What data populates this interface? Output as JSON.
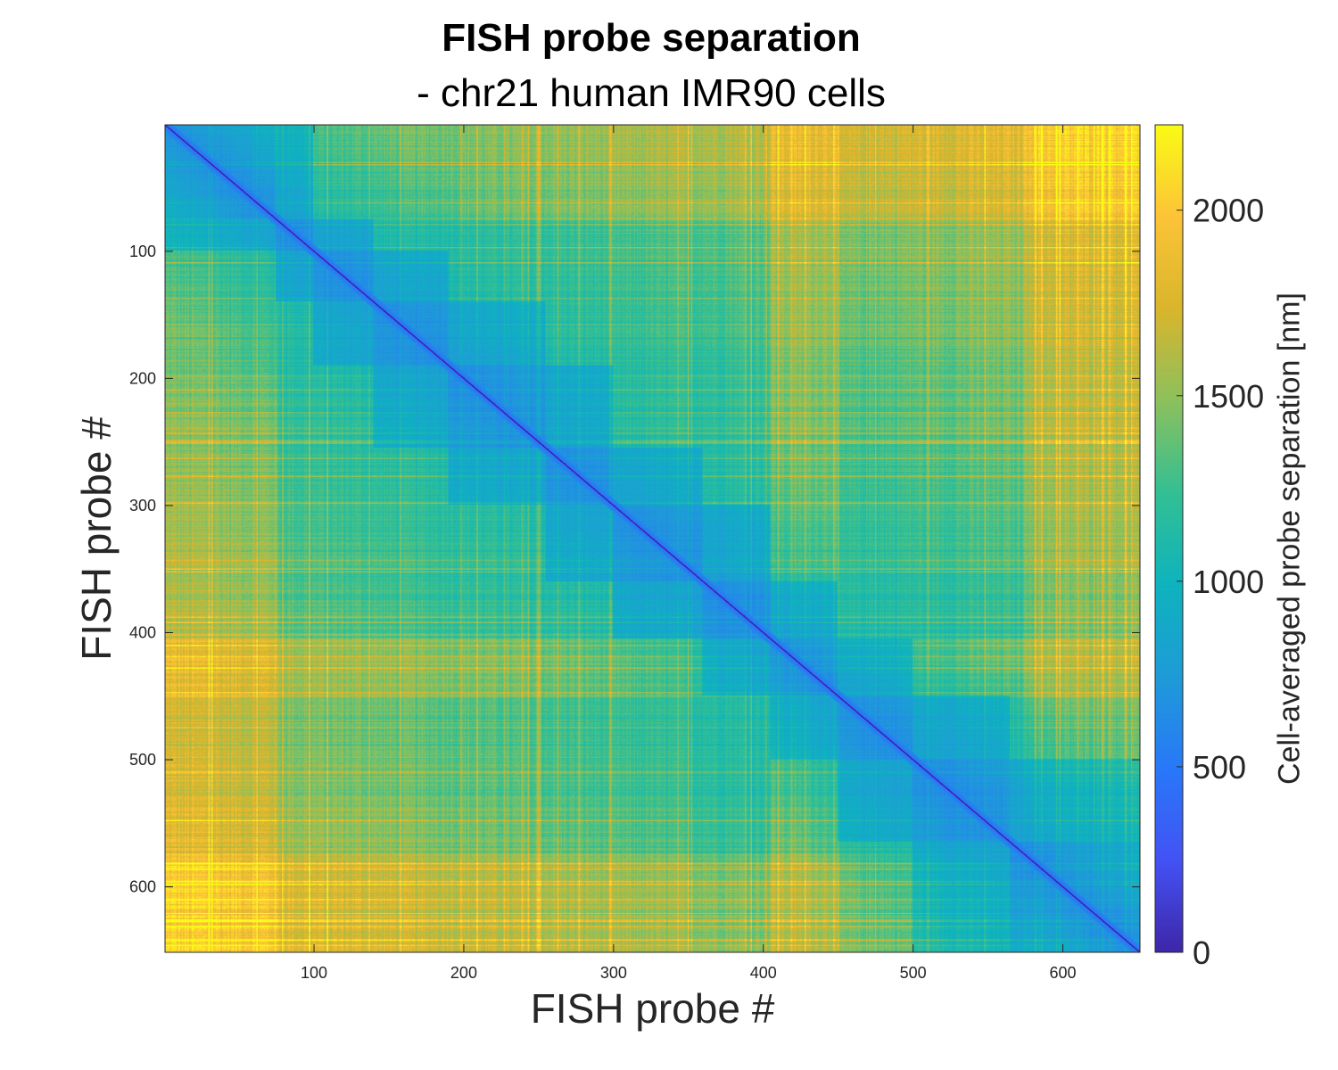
{
  "chart_data": {
    "type": "heatmap",
    "title": "FISH probe separation",
    "subtitle": "- chr21 human IMR90 cells",
    "xlabel": "FISH probe #",
    "ylabel": "FISH probe #",
    "colorbar_label": "Cell-averaged probe separation [nm]",
    "n_probes": 651,
    "xlim": [
      1,
      651
    ],
    "ylim": [
      1,
      651
    ],
    "y_reversed": true,
    "x_ticks": [
      100,
      200,
      300,
      400,
      500,
      600
    ],
    "y_ticks": [
      100,
      200,
      300,
      400,
      500,
      600
    ],
    "clim": [
      0,
      2230
    ],
    "colorbar_ticks": [
      0,
      500,
      1000,
      1500,
      2000
    ],
    "colormap": "parula",
    "colormap_stops": [
      "#3e26a8",
      "#4352f5",
      "#2878f8",
      "#1e9bd7",
      "#0eb3bd",
      "#33bf93",
      "#8cc05c",
      "#d9b52c",
      "#fcc337",
      "#f9fb15"
    ],
    "diagonal_value": 0,
    "domain_boundaries": [
      1,
      75,
      100,
      140,
      190,
      255,
      300,
      360,
      405,
      450,
      500,
      565,
      651
    ],
    "typical_values": {
      "near_diagonal": 450,
      "domain_interior": 650,
      "intermediate": 1050,
      "far_off_diagonal": 1650,
      "maximum_regions": 2000
    },
    "high_separation_probe_bands": [
      [
        1,
        75
      ],
      [
        405,
        450
      ],
      [
        575,
        651
      ]
    ],
    "grid": false
  }
}
